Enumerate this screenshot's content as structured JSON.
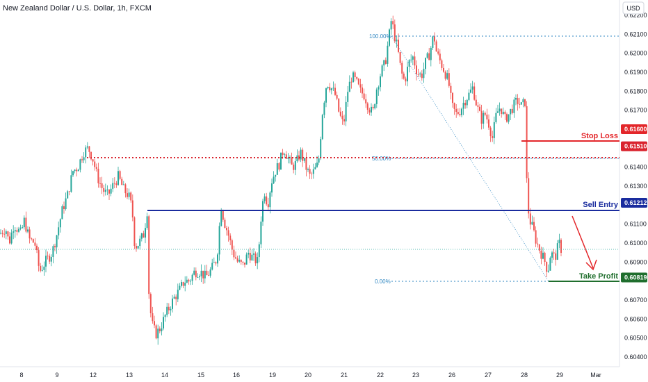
{
  "header": {
    "title": "New Zealand Dollar / U.S. Dollar, 1h, FXCM",
    "currency_button": "USD"
  },
  "chart_data": {
    "type": "candlestick",
    "title": "New Zealand Dollar / U.S. Dollar, 1h, FXCM",
    "xlabel": "",
    "ylabel": "",
    "ylim": [
      0.604,
      0.622
    ],
    "y_ticks": [
      "0.62200",
      "0.62100",
      "0.62000",
      "0.61900",
      "0.61800",
      "0.61700",
      "0.61600",
      "0.61510",
      "0.61400",
      "0.61300",
      "0.61212",
      "0.61100",
      "0.61000",
      "0.60900",
      "0.60819",
      "0.60700",
      "0.60600",
      "0.60500",
      "0.60400"
    ],
    "x_ticks": [
      "8",
      "9",
      "12",
      "13",
      "14",
      "15",
      "16",
      "19",
      "20",
      "21",
      "22",
      "23",
      "26",
      "27",
      "28",
      "29",
      "Mar"
    ],
    "path": [
      [
        0,
        0.6105
      ],
      [
        8,
        0.6108
      ],
      [
        13,
        0.61
      ],
      [
        20,
        0.611
      ],
      [
        30,
        0.6105
      ],
      [
        35,
        0.6112
      ],
      [
        42,
        0.6102
      ],
      [
        50,
        0.61
      ],
      [
        57,
        0.6085
      ],
      [
        65,
        0.609
      ],
      [
        75,
        0.6095
      ],
      [
        82,
        0.6105
      ],
      [
        90,
        0.6118
      ],
      [
        97,
        0.6125
      ],
      [
        105,
        0.6138
      ],
      [
        112,
        0.614
      ],
      [
        120,
        0.6148
      ],
      [
        127,
        0.615
      ],
      [
        133,
        0.6145
      ],
      [
        140,
        0.6135
      ],
      [
        148,
        0.6128
      ],
      [
        155,
        0.6125
      ],
      [
        162,
        0.613
      ],
      [
        170,
        0.6135
      ],
      [
        178,
        0.6128
      ],
      [
        185,
        0.6125
      ],
      [
        190,
        0.6118
      ],
      [
        194,
        0.6098
      ],
      [
        200,
        0.61
      ],
      [
        207,
        0.6105
      ],
      [
        212,
        0.6118
      ],
      [
        214,
        0.6075
      ],
      [
        218,
        0.6058
      ],
      [
        224,
        0.6052
      ],
      [
        230,
        0.6055
      ],
      [
        238,
        0.6062
      ],
      [
        246,
        0.6068
      ],
      [
        252,
        0.6072
      ],
      [
        258,
        0.6075
      ],
      [
        265,
        0.608
      ],
      [
        272,
        0.608
      ],
      [
        280,
        0.6085
      ],
      [
        288,
        0.6085
      ],
      [
        296,
        0.6082
      ],
      [
        304,
        0.6086
      ],
      [
        312,
        0.6092
      ],
      [
        318,
        0.612
      ],
      [
        322,
        0.6112
      ],
      [
        328,
        0.6105
      ],
      [
        335,
        0.6095
      ],
      [
        342,
        0.609
      ],
      [
        350,
        0.6088
      ],
      [
        357,
        0.6095
      ],
      [
        364,
        0.6092
      ],
      [
        371,
        0.609
      ],
      [
        375,
        0.6112
      ],
      [
        380,
        0.6128
      ],
      [
        385,
        0.612
      ],
      [
        390,
        0.6132
      ],
      [
        396,
        0.6138
      ],
      [
        402,
        0.6142
      ],
      [
        408,
        0.615
      ],
      [
        414,
        0.6145
      ],
      [
        420,
        0.614
      ],
      [
        426,
        0.6142
      ],
      [
        432,
        0.6148
      ],
      [
        440,
        0.614
      ],
      [
        446,
        0.6135
      ],
      [
        452,
        0.6138
      ],
      [
        458,
        0.6142
      ],
      [
        464,
        0.617
      ],
      [
        470,
        0.6185
      ],
      [
        476,
        0.6182
      ],
      [
        482,
        0.6178
      ],
      [
        488,
        0.6168
      ],
      [
        494,
        0.6162
      ],
      [
        500,
        0.618
      ],
      [
        506,
        0.6188
      ],
      [
        512,
        0.6185
      ],
      [
        518,
        0.618
      ],
      [
        524,
        0.6178
      ],
      [
        530,
        0.6172
      ],
      [
        536,
        0.6168
      ],
      [
        542,
        0.6182
      ],
      [
        548,
        0.619
      ],
      [
        554,
        0.6195
      ],
      [
        560,
        0.621
      ],
      [
        563,
        0.6218
      ],
      [
        567,
        0.621
      ],
      [
        572,
        0.6202
      ],
      [
        577,
        0.619
      ],
      [
        582,
        0.6185
      ],
      [
        588,
        0.6195
      ],
      [
        594,
        0.6198
      ],
      [
        600,
        0.619
      ],
      [
        606,
        0.6188
      ],
      [
        612,
        0.6195
      ],
      [
        618,
        0.62
      ],
      [
        624,
        0.621
      ],
      [
        628,
        0.62
      ],
      [
        634,
        0.6195
      ],
      [
        640,
        0.619
      ],
      [
        645,
        0.6185
      ],
      [
        650,
        0.6172
      ],
      [
        656,
        0.6168
      ],
      [
        662,
        0.617
      ],
      [
        668,
        0.6175
      ],
      [
        674,
        0.6178
      ],
      [
        680,
        0.6182
      ],
      [
        686,
        0.6172
      ],
      [
        692,
        0.6165
      ],
      [
        698,
        0.6168
      ],
      [
        704,
        0.6162
      ],
      [
        708,
        0.6155
      ],
      [
        714,
        0.6168
      ],
      [
        720,
        0.6172
      ],
      [
        726,
        0.6165
      ],
      [
        732,
        0.6168
      ],
      [
        738,
        0.6172
      ],
      [
        744,
        0.6175
      ],
      [
        750,
        0.6172
      ],
      [
        756,
        0.6175
      ],
      [
        758,
        0.6122
      ],
      [
        762,
        0.6112
      ],
      [
        766,
        0.6108
      ],
      [
        772,
        0.61
      ],
      [
        778,
        0.6095
      ],
      [
        784,
        0.609
      ],
      [
        788,
        0.6085
      ],
      [
        792,
        0.6095
      ],
      [
        798,
        0.6092
      ],
      [
        804,
        0.61
      ],
      [
        808,
        0.6096
      ]
    ],
    "levels": [
      {
        "label": "Stop Loss",
        "value": "0.61600",
        "color": "#e3262a"
      },
      {
        "label": "",
        "value": "0.61510",
        "color": "#d9232d"
      },
      {
        "label": "Sell Entry",
        "value": "0.61212",
        "color": "#1a2c9e"
      },
      {
        "label": "Take Profit",
        "value": "0.60819",
        "color": "#1f6e2d"
      }
    ],
    "fib_labels": [
      "100.00%",
      "50.00%",
      "0.00%"
    ]
  }
}
